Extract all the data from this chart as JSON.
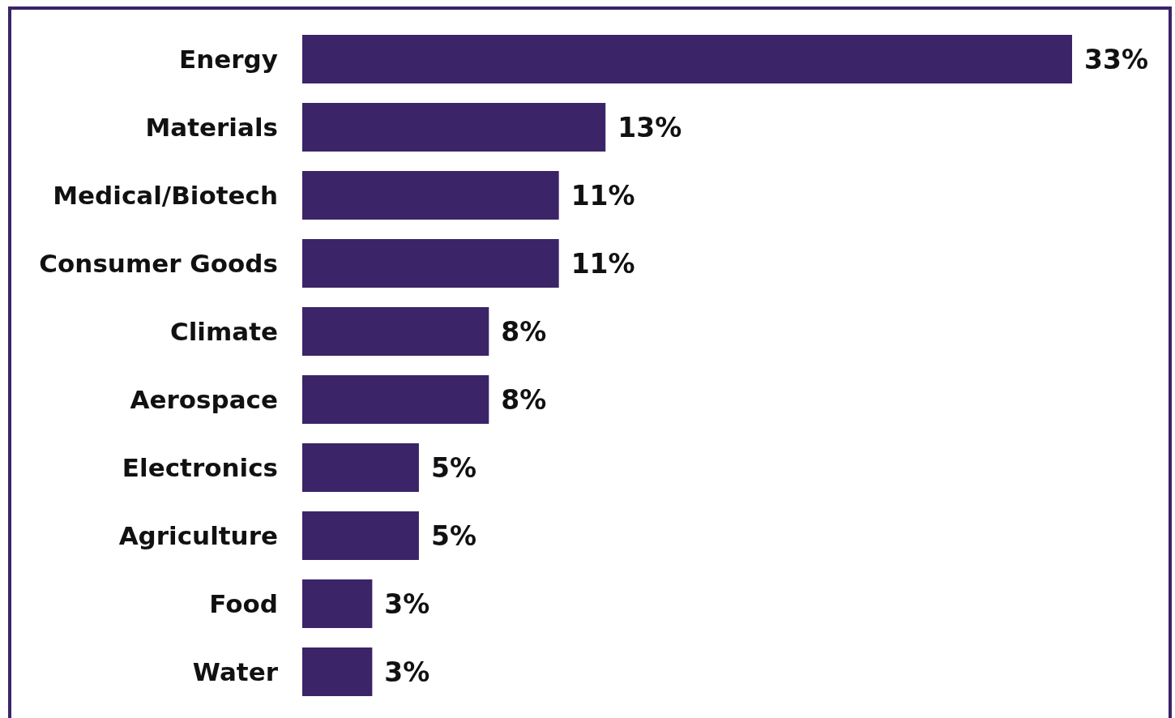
{
  "chart_data": {
    "type": "bar",
    "orientation": "horizontal",
    "categories": [
      "Energy",
      "Materials",
      "Medical/Biotech",
      "Consumer Goods",
      "Climate",
      "Aerospace",
      "Electronics",
      "Agriculture",
      "Food",
      "Water"
    ],
    "values": [
      33,
      13,
      11,
      11,
      8,
      8,
      5,
      5,
      3,
      3
    ],
    "value_labels": [
      "33%",
      "13%",
      "11%",
      "11%",
      "8%",
      "8%",
      "5%",
      "5%",
      "3%",
      "3%"
    ],
    "color": "#3b2468"
  }
}
